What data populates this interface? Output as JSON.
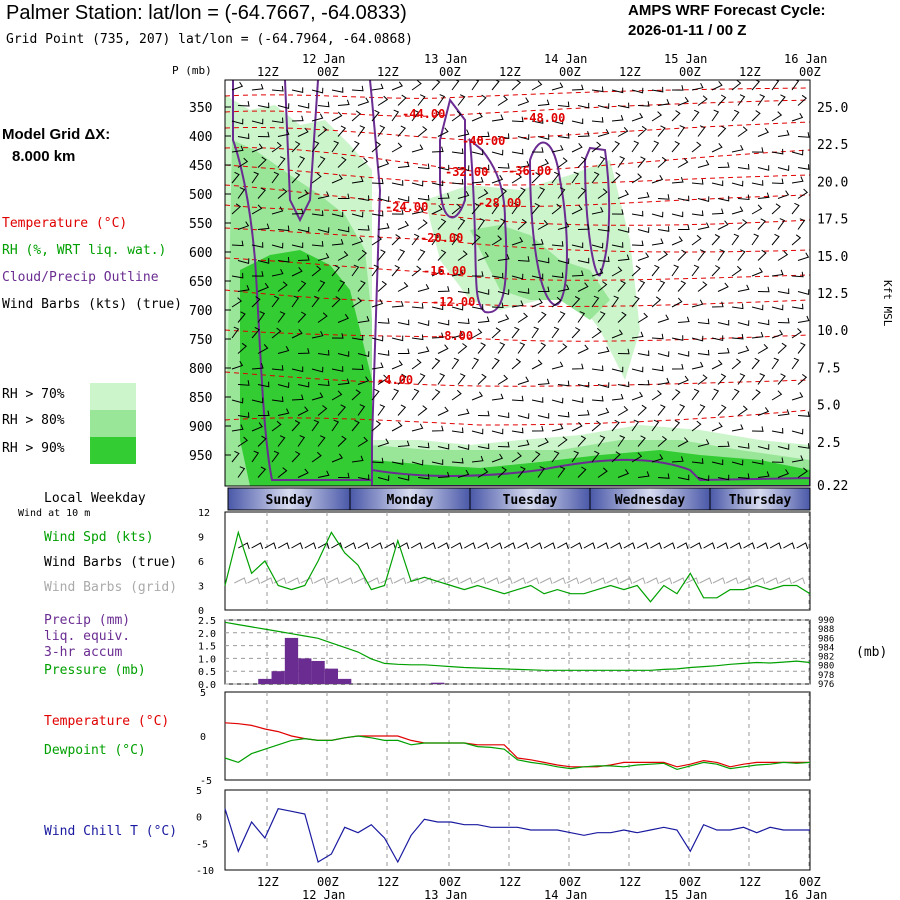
{
  "header": {
    "title": "Palmer Station:  lat/lon = (-64.7667, -64.0833)",
    "grid_point": "Grid Point (735, 207) lat/lon = (-64.7964, -64.0868)",
    "cycle_line1": "AMPS WRF Forecast Cycle:",
    "cycle_line2": "2026-01-11 / 00  Z"
  },
  "sidebar": {
    "model_grid_1": "Model Grid ΔX:",
    "model_grid_2": "8.000 km",
    "temperature": "Temperature (°C)",
    "rh": "RH (%, WRT liq. wat.)",
    "cloud": "Cloud/Precip Outline",
    "wind": "Wind Barbs (kts) (true)",
    "rh70": "RH > 70%",
    "rh80": "RH > 80%",
    "rh90": "RH > 90%",
    "p_axis_label": "P (mb)",
    "kft_label": "Kft MSL",
    "local_weekday": "Local Weekday",
    "wind_at": "Wind at 10 m",
    "wind_spd": "Wind Spd (kts)",
    "wind_barbs_true": "Wind Barbs (true)",
    "wind_barbs_grid": "Wind Barbs (grid)",
    "precip": "Precip (mm)",
    "liq_equiv": "liq. equiv.",
    "accum": "3-hr accum",
    "pressure": "Pressure (mb)",
    "pressure_unit": "(mb)",
    "temp2": "Temperature (°C)",
    "dewpoint": "Dewpoint (°C)",
    "windchill": "Wind Chill T (°C)"
  },
  "colors": {
    "temperature": "#e00000",
    "rh": "#00a000",
    "cloud": "#6a2c91",
    "wind": "#000000",
    "wind_grid": "#aaaaaa",
    "windchill": "#1a1aa0",
    "rh70": "#ccf5cc",
    "rh80": "#99e699",
    "rh90": "#33cc33"
  },
  "chart_data": [
    {
      "type": "heatmap",
      "time_top_labels": [
        "12Z",
        "00Z",
        "12Z",
        "00Z",
        "12Z",
        "00Z",
        "12Z",
        "00Z",
        "12Z",
        "00Z"
      ],
      "date_top_labels": [
        "12 Jan",
        "13 Jan",
        "14 Jan",
        "15 Jan",
        "16 Jan"
      ],
      "pressure_levels": [
        "350",
        "400",
        "450",
        "500",
        "550",
        "600",
        "650",
        "700",
        "750",
        "800",
        "850",
        "900",
        "950"
      ],
      "height_labels": [
        "25.0",
        "22.5",
        "20.0",
        "17.5",
        "15.0",
        "12.5",
        "10.0",
        "7.5",
        "5.0",
        "2.5",
        "0.22"
      ],
      "isotherm_labels": [
        "-48.00",
        "-44.00",
        "-40.00",
        "-36.00",
        "-32.00",
        "-28.00",
        "-24.00",
        "-20.00",
        "-16.00",
        "-12.00",
        "-8.00",
        "-4.00"
      ]
    },
    {
      "type": "line",
      "weekdays": [
        "Sunday",
        "Monday",
        "Tuesday",
        "Wednesday",
        "Thursday"
      ],
      "y_ticks": [
        "12",
        "9",
        "6",
        "3",
        "0"
      ],
      "ylim": [
        0,
        12
      ],
      "wind_speed_kts": [
        3,
        9.5,
        4.5,
        6,
        3,
        2.5,
        3,
        6,
        9.5,
        7,
        5.5,
        2.5,
        3,
        8.5,
        3.5,
        4,
        3.5,
        3,
        2.5,
        3,
        2.5,
        2,
        2.5,
        3,
        2,
        2.5,
        2,
        2,
        2.5,
        3,
        2.5,
        3,
        1,
        3,
        2,
        4.5,
        1.5,
        1.5,
        2.5,
        2.5,
        3,
        2.5,
        3,
        3,
        2
      ]
    },
    {
      "type": "bar",
      "precip_ticks": [
        "2.5",
        "2.0",
        "1.5",
        "1.0",
        "0.5",
        "0.0"
      ],
      "pressure_ticks": [
        "990",
        "988",
        "986",
        "984",
        "982",
        "980",
        "978",
        "976"
      ],
      "precip_mm": [
        0,
        0,
        0,
        0.2,
        0.5,
        1.8,
        1.0,
        0.9,
        0.6,
        0.2,
        0,
        0,
        0,
        0,
        0,
        0,
        0.05,
        0,
        0,
        0,
        0,
        0,
        0,
        0,
        0,
        0,
        0,
        0,
        0,
        0,
        0,
        0,
        0,
        0,
        0,
        0,
        0,
        0,
        0,
        0,
        0,
        0,
        0,
        0,
        0
      ],
      "pressure_mb": [
        989.5,
        989,
        988.5,
        988,
        987.5,
        987,
        986.5,
        986,
        985,
        984,
        983,
        981.5,
        980.5,
        980.3,
        980.2,
        980.2,
        980,
        979.8,
        979.6,
        979.5,
        979.4,
        979.3,
        979.2,
        979.1,
        979,
        979,
        979,
        979,
        979,
        979,
        979,
        979,
        979,
        979.2,
        979.3,
        979.6,
        979.8,
        980,
        980.3,
        980.5,
        980.7,
        980.6,
        980.8,
        981,
        980.7
      ]
    },
    {
      "type": "line",
      "y_ticks": [
        "5",
        "0",
        "-5"
      ],
      "ylim": [
        -5,
        5
      ],
      "temperature_c": [
        1.5,
        1.4,
        1.2,
        0.8,
        0.5,
        0,
        -0.3,
        -0.5,
        -0.5,
        -0.2,
        0,
        0,
        0,
        0,
        -0.5,
        -0.8,
        -0.8,
        -0.8,
        -0.8,
        -1.0,
        -1.0,
        -1.0,
        -2.5,
        -2.7,
        -3.0,
        -3.3,
        -3.5,
        -3.5,
        -3.5,
        -3.3,
        -3.0,
        -3.0,
        -3.0,
        -3.0,
        -3.5,
        -3.2,
        -2.8,
        -3.0,
        -3.5,
        -3.2,
        -3.0,
        -3.0,
        -3.0,
        -3.0,
        -3.0
      ],
      "dewpoint_c": [
        -2.5,
        -3.0,
        -2.0,
        -1.5,
        -1.0,
        -0.5,
        -0.3,
        -0.5,
        -0.5,
        -0.2,
        0,
        -0.2,
        -0.5,
        -0.5,
        -1.0,
        -0.8,
        -0.8,
        -0.8,
        -0.8,
        -1.2,
        -1.3,
        -1.5,
        -2.7,
        -3.0,
        -3.2,
        -3.5,
        -3.7,
        -3.5,
        -3.4,
        -3.4,
        -3.5,
        -3.3,
        -3.2,
        -3.1,
        -3.8,
        -3.4,
        -3.0,
        -3.2,
        -3.7,
        -3.5,
        -3.3,
        -3.2,
        -3.0,
        -3.1,
        -3.0
      ]
    },
    {
      "type": "line",
      "y_ticks": [
        "5",
        "0",
        "-5",
        "-10"
      ],
      "ylim": [
        -10,
        5
      ],
      "wind_chill_c": [
        1.5,
        -6.5,
        -1,
        -4,
        1.5,
        1,
        0.5,
        -8.5,
        -7,
        -2,
        -3,
        -1.5,
        -4,
        -8.5,
        -3.5,
        -0.5,
        -1,
        -1,
        -1.5,
        -1.5,
        -2,
        -2,
        -2,
        -2.5,
        -2.5,
        -2.5,
        -3,
        -3.5,
        -3,
        -3,
        -2.5,
        -3,
        -2.5,
        -2,
        -2.5,
        -6.5,
        -1.5,
        -2.5,
        -2.5,
        -2,
        -3,
        -2,
        -2.5,
        -2.5,
        -2.5
      ],
      "x_time_labels": [
        "12Z",
        "00Z",
        "12Z",
        "00Z",
        "12Z",
        "00Z",
        "12Z",
        "00Z",
        "12Z",
        "00Z"
      ],
      "x_date_labels": [
        "12 Jan",
        "13 Jan",
        "14 Jan",
        "15 Jan",
        "16 Jan"
      ]
    }
  ]
}
